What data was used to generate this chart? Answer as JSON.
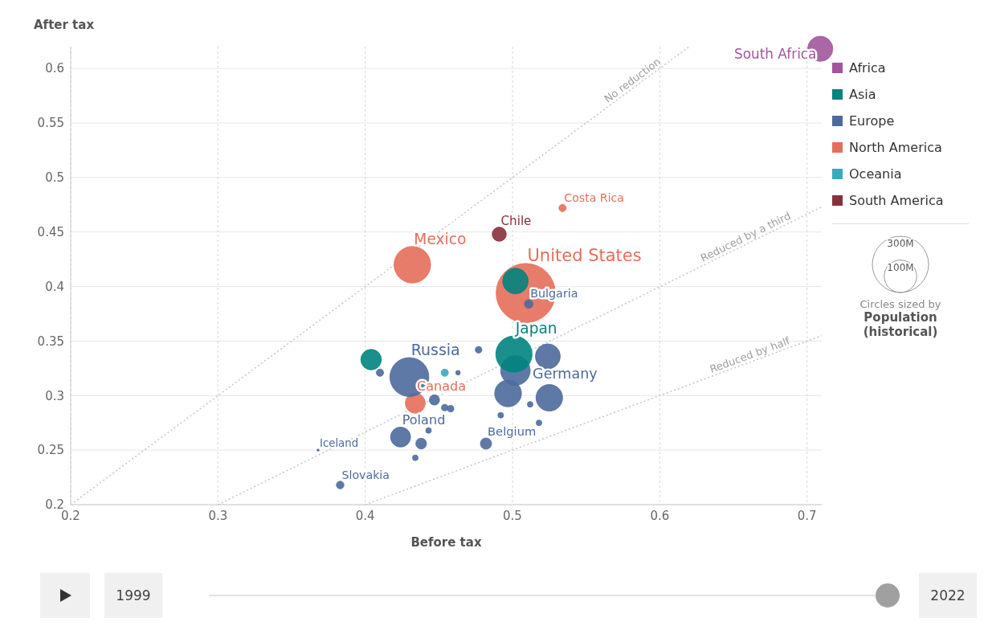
{
  "chart_data": {
    "type": "bubble",
    "xlabel": "Before tax",
    "ylabel": "After tax",
    "xlim": [
      0.2,
      0.71
    ],
    "ylim": [
      0.2,
      0.62
    ],
    "xticks": [
      0.2,
      0.3,
      0.4,
      0.5,
      0.6,
      0.7
    ],
    "yticks": [
      0.2,
      0.25,
      0.3,
      0.35,
      0.4,
      0.45,
      0.5,
      0.55,
      0.6
    ],
    "grid": true,
    "legend": "top right",
    "marker": "circle",
    "size_legend": [
      {
        "value": 300,
        "label": "300M"
      },
      {
        "value": 100,
        "label": "100M"
      }
    ],
    "series": [
      {
        "name": "No reduction",
        "type": "line",
        "color": "#c4c4c4",
        "line_style": "dotted",
        "marker": "none",
        "x": [
          0.2,
          0.62
        ],
        "values": [
          0.2,
          0.62
        ]
      },
      {
        "name": "Reduced by a third",
        "type": "line",
        "color": "#c4c4c4",
        "line_style": "dotted",
        "marker": "none",
        "x": [
          0.3,
          0.71
        ],
        "values": [
          0.2,
          0.473
        ]
      },
      {
        "name": "Reduced by half",
        "type": "line",
        "color": "#c4c4c4",
        "line_style": "dotted",
        "marker": "none",
        "x": [
          0.4,
          0.71
        ],
        "values": [
          0.2,
          0.355
        ]
      },
      {
        "name": "Africa",
        "color": "#a2559c",
        "x": [
          0.709
        ],
        "values": [
          0.618
        ],
        "sizes": [
          60
        ]
      },
      {
        "name": "Asia",
        "color": "#00847e",
        "x": [
          0.501,
          0.502,
          0.404
        ],
        "values": [
          0.338,
          0.405,
          0.333
        ],
        "sizes": [
          125,
          62,
          40
        ]
      },
      {
        "name": "Europe",
        "color": "#4c6a9c",
        "x": [
          0.43,
          0.502,
          0.497,
          0.525,
          0.524,
          0.424,
          0.482,
          0.438,
          0.447,
          0.511,
          0.41,
          0.477,
          0.463,
          0.454,
          0.458,
          0.443,
          0.434,
          0.368,
          0.383,
          0.492,
          0.512,
          0.518
        ],
        "values": [
          0.317,
          0.323,
          0.302,
          0.298,
          0.336,
          0.262,
          0.256,
          0.256,
          0.296,
          0.384,
          0.321,
          0.342,
          0.321,
          0.289,
          0.288,
          0.268,
          0.243,
          0.25,
          0.218,
          0.282,
          0.292,
          0.275
        ],
        "sizes": [
          144,
          83,
          68,
          67,
          59,
          38,
          12,
          11,
          10,
          7,
          5,
          4,
          2,
          4,
          4,
          3,
          3,
          0.4,
          5.5,
          3,
          3,
          3
        ]
      },
      {
        "name": "North America",
        "color": "#e56e5a",
        "x": [
          0.509,
          0.432,
          0.434,
          0.534
        ],
        "values": [
          0.394,
          0.42,
          0.293,
          0.472
        ],
        "sizes": [
          333,
          127,
          38,
          5
        ]
      },
      {
        "name": "Oceania",
        "color": "#38aaba",
        "x": [
          0.454
        ],
        "values": [
          0.321
        ],
        "sizes": [
          5
        ]
      },
      {
        "name": "South America",
        "color": "#883039",
        "x": [
          0.491
        ],
        "values": [
          0.448
        ],
        "sizes": [
          19
        ]
      }
    ],
    "annotations": [
      {
        "text": "South Africa",
        "x": 0.709,
        "y": 0.618
      },
      {
        "text": "Japan",
        "x": 0.501,
        "y": 0.338
      },
      {
        "text": "Russia",
        "x": 0.43,
        "y": 0.317
      },
      {
        "text": "Germany",
        "x": 0.502,
        "y": 0.323
      },
      {
        "text": "Poland",
        "x": 0.424,
        "y": 0.262
      },
      {
        "text": "Belgium",
        "x": 0.482,
        "y": 0.256
      },
      {
        "text": "Bulgaria",
        "x": 0.511,
        "y": 0.384
      },
      {
        "text": "Iceland",
        "x": 0.368,
        "y": 0.25
      },
      {
        "text": "Slovakia",
        "x": 0.383,
        "y": 0.218
      },
      {
        "text": "United States",
        "x": 0.509,
        "y": 0.394
      },
      {
        "text": "Mexico",
        "x": 0.432,
        "y": 0.42
      },
      {
        "text": "Canada",
        "x": 0.434,
        "y": 0.293
      },
      {
        "text": "Costa Rica",
        "x": 0.534,
        "y": 0.472
      },
      {
        "text": "Chile",
        "x": 0.491,
        "y": 0.448
      },
      "Circles sized by",
      "Population (historical)",
      "1999",
      "2022"
    ]
  }
}
